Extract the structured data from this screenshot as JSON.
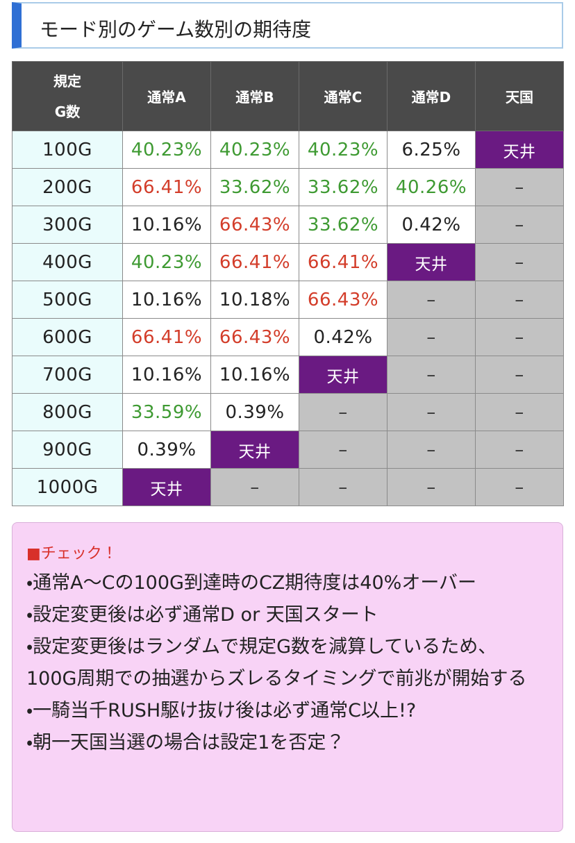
{
  "header": {
    "title": "モード別のゲーム数別の期待度"
  },
  "table": {
    "corner": [
      "規定",
      "G数"
    ],
    "columns": [
      "通常A",
      "通常B",
      "通常C",
      "通常D",
      "天国"
    ],
    "rows": [
      {
        "label": "100G",
        "cells": [
          {
            "text": "40.23%",
            "tone": "green"
          },
          {
            "text": "40.23%",
            "tone": "green"
          },
          {
            "text": "40.23%",
            "tone": "green"
          },
          {
            "text": "6.25%",
            "tone": "black"
          },
          {
            "text": "天井",
            "tone": "ceiling"
          }
        ]
      },
      {
        "label": "200G",
        "cells": [
          {
            "text": "66.41%",
            "tone": "red"
          },
          {
            "text": "33.62%",
            "tone": "green"
          },
          {
            "text": "33.62%",
            "tone": "green"
          },
          {
            "text": "40.26%",
            "tone": "green"
          },
          {
            "text": "–",
            "tone": "none"
          }
        ]
      },
      {
        "label": "300G",
        "cells": [
          {
            "text": "10.16%",
            "tone": "black"
          },
          {
            "text": "66.43%",
            "tone": "red"
          },
          {
            "text": "33.62%",
            "tone": "green"
          },
          {
            "text": "0.42%",
            "tone": "black"
          },
          {
            "text": "–",
            "tone": "none"
          }
        ]
      },
      {
        "label": "400G",
        "cells": [
          {
            "text": "40.23%",
            "tone": "green"
          },
          {
            "text": "66.41%",
            "tone": "red"
          },
          {
            "text": "66.41%",
            "tone": "red"
          },
          {
            "text": "天井",
            "tone": "ceiling"
          },
          {
            "text": "–",
            "tone": "none"
          }
        ]
      },
      {
        "label": "500G",
        "cells": [
          {
            "text": "10.16%",
            "tone": "black"
          },
          {
            "text": "10.18%",
            "tone": "black"
          },
          {
            "text": "66.43%",
            "tone": "red"
          },
          {
            "text": "–",
            "tone": "none"
          },
          {
            "text": "–",
            "tone": "none"
          }
        ]
      },
      {
        "label": "600G",
        "cells": [
          {
            "text": "66.41%",
            "tone": "red"
          },
          {
            "text": "66.43%",
            "tone": "red"
          },
          {
            "text": "0.42%",
            "tone": "black"
          },
          {
            "text": "–",
            "tone": "none"
          },
          {
            "text": "–",
            "tone": "none"
          }
        ]
      },
      {
        "label": "700G",
        "cells": [
          {
            "text": "10.16%",
            "tone": "black"
          },
          {
            "text": "10.16%",
            "tone": "black"
          },
          {
            "text": "天井",
            "tone": "ceiling"
          },
          {
            "text": "–",
            "tone": "none"
          },
          {
            "text": "–",
            "tone": "none"
          }
        ]
      },
      {
        "label": "800G",
        "cells": [
          {
            "text": "33.59%",
            "tone": "green"
          },
          {
            "text": "0.39%",
            "tone": "black"
          },
          {
            "text": "–",
            "tone": "none"
          },
          {
            "text": "–",
            "tone": "none"
          },
          {
            "text": "–",
            "tone": "none"
          }
        ]
      },
      {
        "label": "900G",
        "cells": [
          {
            "text": "0.39%",
            "tone": "black"
          },
          {
            "text": "天井",
            "tone": "ceiling"
          },
          {
            "text": "–",
            "tone": "none"
          },
          {
            "text": "–",
            "tone": "none"
          },
          {
            "text": "–",
            "tone": "none"
          }
        ]
      },
      {
        "label": "1000G",
        "cells": [
          {
            "text": "天井",
            "tone": "ceiling"
          },
          {
            "text": "–",
            "tone": "none"
          },
          {
            "text": "–",
            "tone": "none"
          },
          {
            "text": "–",
            "tone": "none"
          },
          {
            "text": "–",
            "tone": "none"
          }
        ]
      }
    ]
  },
  "note": {
    "heading": "■チェック！",
    "items": [
      "・通常A〜Cの100G到達時のCZ期待度は40%オーバー",
      "・設定変更後は必ず通常D or 天国スタート",
      "・設定変更後はランダムで規定G数を減算しているため、100G周期での抽選からズレるタイミングで前兆が開始する",
      "・一騎当千RUSH駆け抜け後は必ず通常C以上!?",
      "・朝一天国当選の場合は設定1を否定？"
    ]
  }
}
